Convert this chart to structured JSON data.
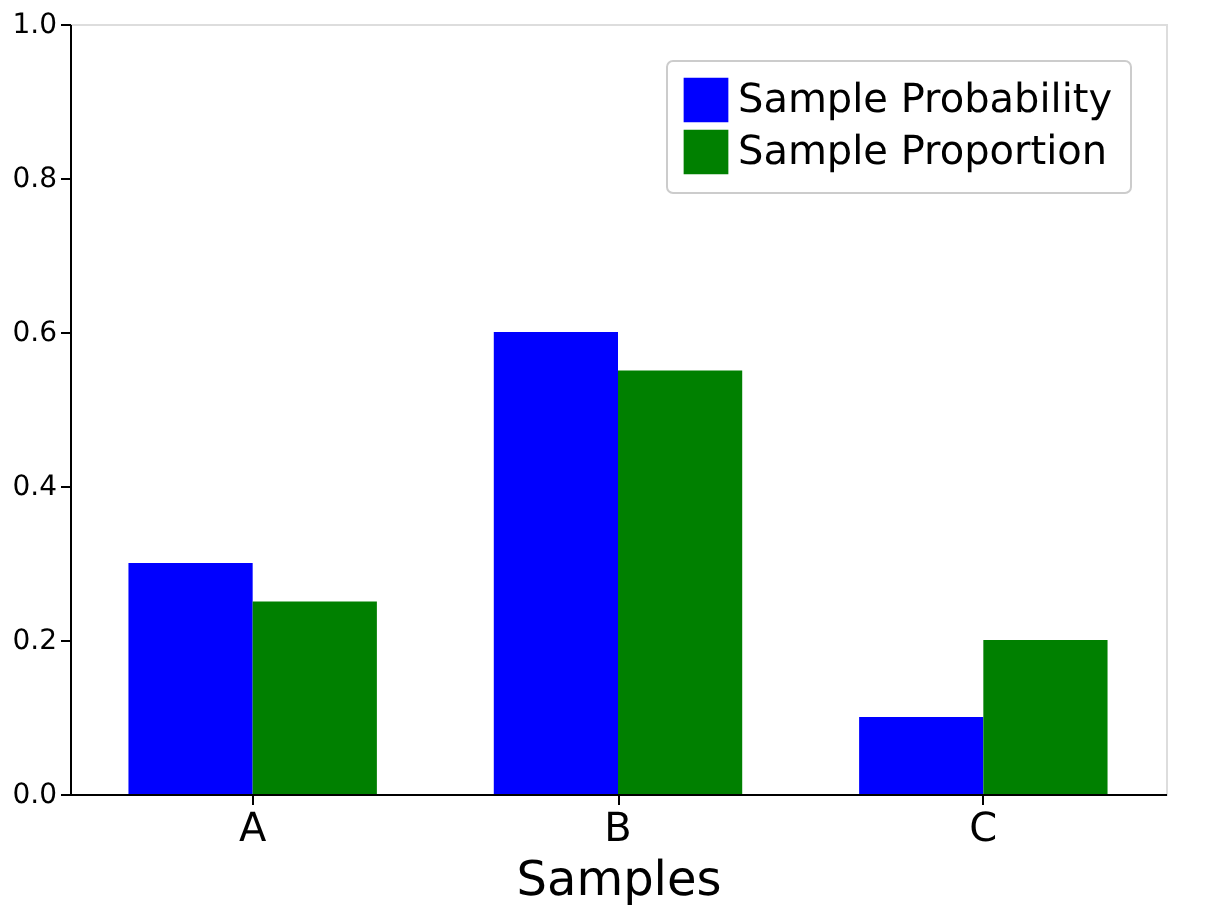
{
  "chart_data": {
    "type": "bar",
    "xlabel": "Samples",
    "categories": [
      "A",
      "B",
      "C"
    ],
    "series": [
      {
        "name": "Sample Probability",
        "color": "#0000ff",
        "values": [
          0.3,
          0.6,
          0.1
        ]
      },
      {
        "name": "Sample Proportion",
        "color": "#008000",
        "values": [
          0.25,
          0.55,
          0.2
        ]
      }
    ],
    "ylim": [
      0,
      1
    ],
    "yticks": [
      {
        "value": 0,
        "label": "0.0"
      },
      0.2,
      0.4,
      0.6,
      0.8,
      {
        "value": 1,
        "label": "1.0"
      }
    ],
    "grid": false,
    "legend": "top right"
  }
}
